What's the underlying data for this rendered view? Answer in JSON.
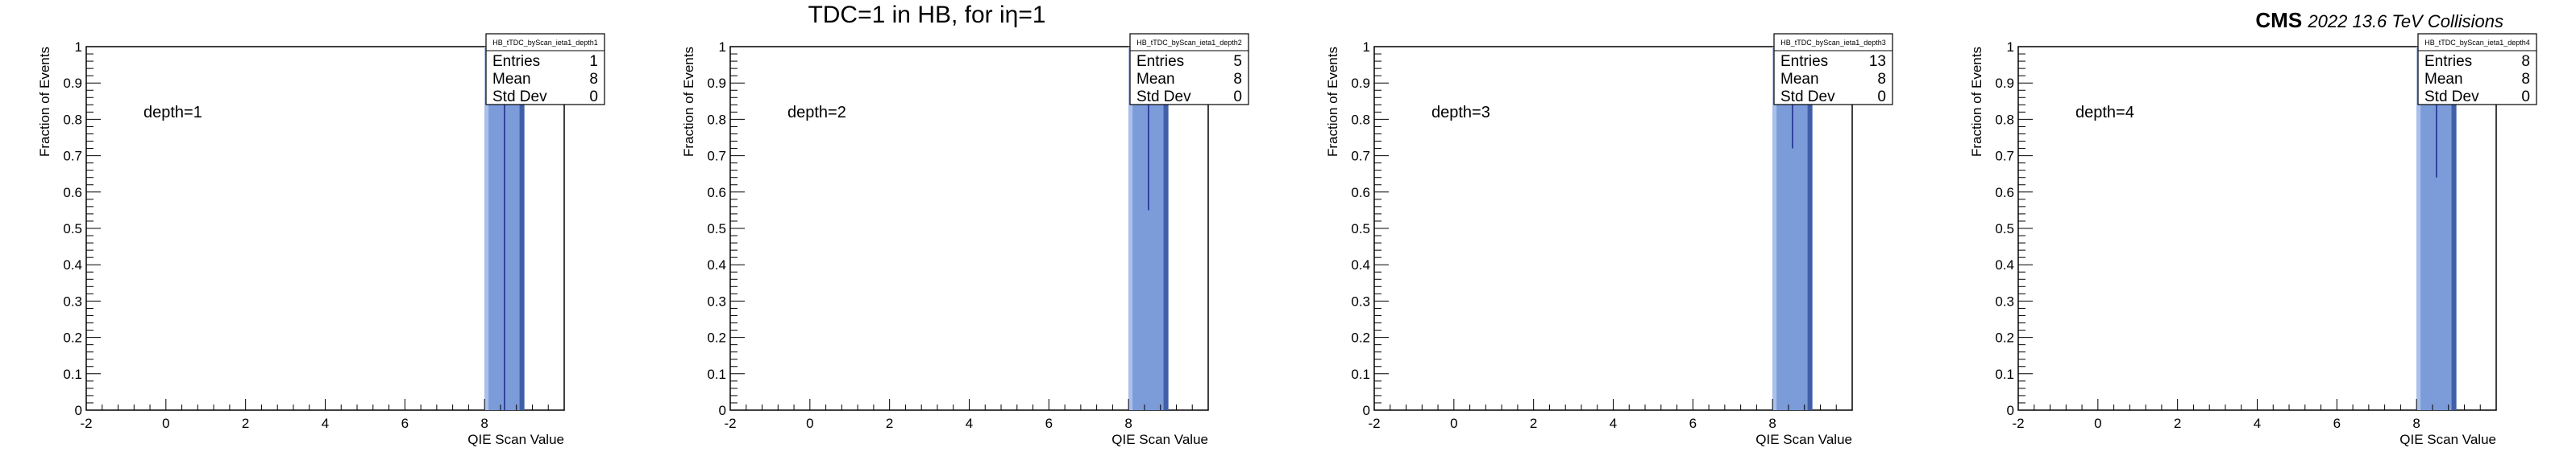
{
  "page": {
    "title": "TDC=1 in HB, for iη=1",
    "cms": {
      "experiment": "CMS",
      "energy": "2022 13.6 TeV Collisions"
    }
  },
  "chart_data": [
    {
      "type": "bar",
      "annotation": "depth=1",
      "xlabel": "QIE Scan Value",
      "ylabel": "Fraction of Events",
      "xlim": [
        -2,
        10
      ],
      "ylim": [
        0,
        1
      ],
      "xticks": [
        -2,
        0,
        2,
        4,
        6,
        8
      ],
      "yticks": [
        0,
        0.1,
        0.2,
        0.3,
        0.4,
        0.5,
        0.6,
        0.7,
        0.8,
        0.9,
        1
      ],
      "bins": [
        {
          "x": 8.5,
          "value": 1.0,
          "error": 1.0
        }
      ],
      "stats": {
        "name": "HB_tTDC_byScan_ieta1_depth1",
        "entries": "1",
        "mean": "8",
        "std_dev": "0"
      }
    },
    {
      "type": "bar",
      "annotation": "depth=2",
      "xlabel": "QIE Scan Value",
      "ylabel": "Fraction of Events",
      "xlim": [
        -2,
        10
      ],
      "ylim": [
        0,
        1
      ],
      "xticks": [
        -2,
        0,
        2,
        4,
        6,
        8
      ],
      "yticks": [
        0,
        0.1,
        0.2,
        0.3,
        0.4,
        0.5,
        0.6,
        0.7,
        0.8,
        0.9,
        1
      ],
      "bins": [
        {
          "x": 8.5,
          "value": 1.0,
          "error": 0.45
        }
      ],
      "stats": {
        "name": "HB_tTDC_byScan_ieta1_depth2",
        "entries": "5",
        "mean": "8",
        "std_dev": "0"
      }
    },
    {
      "type": "bar",
      "annotation": "depth=3",
      "xlabel": "QIE Scan Value",
      "ylabel": "Fraction of Events",
      "xlim": [
        -2,
        10
      ],
      "ylim": [
        0,
        1
      ],
      "xticks": [
        -2,
        0,
        2,
        4,
        6,
        8
      ],
      "yticks": [
        0,
        0.1,
        0.2,
        0.3,
        0.4,
        0.5,
        0.6,
        0.7,
        0.8,
        0.9,
        1
      ],
      "bins": [
        {
          "x": 8.5,
          "value": 1.0,
          "error": 0.28
        }
      ],
      "stats": {
        "name": "HB_tTDC_byScan_ieta1_depth3",
        "entries": "13",
        "mean": "8",
        "std_dev": "0"
      }
    },
    {
      "type": "bar",
      "annotation": "depth=4",
      "xlabel": "QIE Scan Value",
      "ylabel": "Fraction of Events",
      "xlim": [
        -2,
        10
      ],
      "ylim": [
        0,
        1
      ],
      "xticks": [
        -2,
        0,
        2,
        4,
        6,
        8
      ],
      "yticks": [
        0,
        0.1,
        0.2,
        0.3,
        0.4,
        0.5,
        0.6,
        0.7,
        0.8,
        0.9,
        1
      ],
      "bins": [
        {
          "x": 8.5,
          "value": 1.0,
          "error": 0.36
        }
      ],
      "stats": {
        "name": "HB_tTDC_byScan_ieta1_depth4",
        "entries": "8",
        "mean": "8",
        "std_dev": "0"
      }
    }
  ],
  "colors": {
    "bar_fill": "#7b9bd9",
    "bar_highlight": "#a9c0ec",
    "bar_dark": "#3f5fa8",
    "error_line": "#1a2a8a"
  }
}
